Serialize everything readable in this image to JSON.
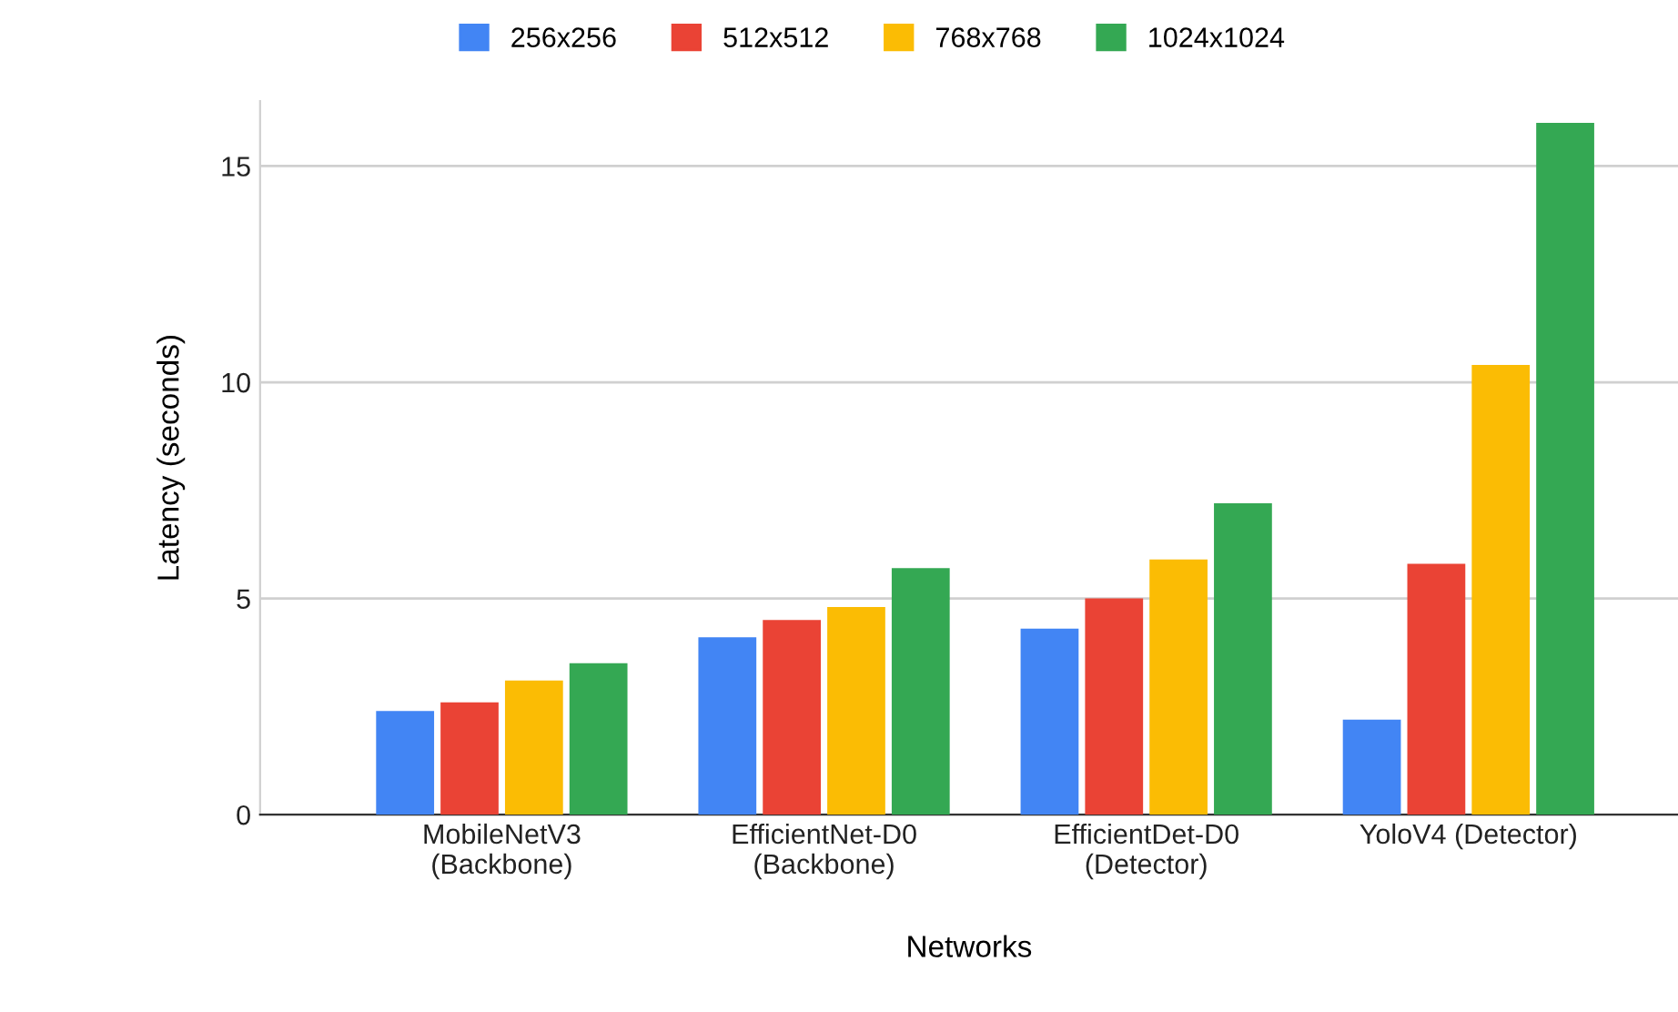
{
  "chart_data": {
    "type": "bar",
    "xlabel": "Networks",
    "ylabel": "Latency (seconds)",
    "categories": [
      "MobileNetV3\n(Backbone)",
      "EfficientNet-D0\n(Backbone)",
      "EfficientDet-D0\n(Detector)",
      "YoloV4 (Detector)"
    ],
    "series": [
      {
        "name": "256x256",
        "color": "#4285f4",
        "values": [
          2.4,
          4.1,
          4.3,
          2.2
        ]
      },
      {
        "name": "512x512",
        "color": "#ea4335",
        "values": [
          2.6,
          4.5,
          5.0,
          5.8
        ]
      },
      {
        "name": "768x768",
        "color": "#fbbc04",
        "values": [
          3.1,
          4.8,
          5.9,
          10.4
        ]
      },
      {
        "name": "1024x1024",
        "color": "#34a853",
        "values": [
          3.5,
          5.7,
          7.2,
          16.0
        ]
      }
    ],
    "ylim": [
      0,
      16.5
    ],
    "yticks": [
      0,
      5,
      10,
      15
    ],
    "grid": "y",
    "legend": "top"
  }
}
